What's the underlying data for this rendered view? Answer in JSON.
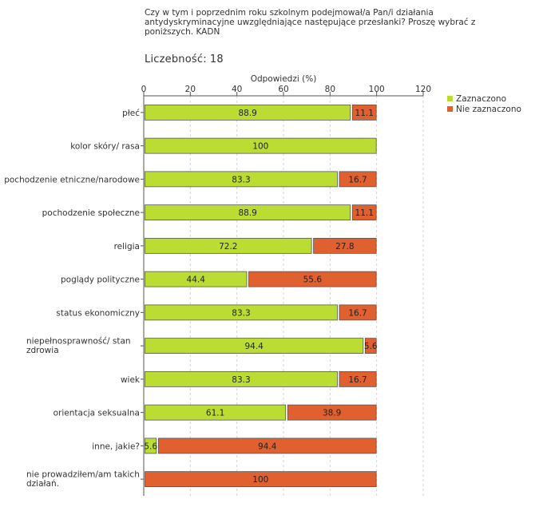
{
  "title": "Czy w tym i poprzednim roku szkolnym podejmował/a Pan/i działania antydyskryminacyjne uwzględniające następujące przesłanki? Proszę wybrać z poniższych. KADN",
  "count_label": "Liczebność:",
  "count_value": "18",
  "colors": {
    "selected": "#bbdd33",
    "not_selected": "#e06030",
    "bar_stroke": "#555555"
  },
  "chart_data": {
    "type": "bar",
    "orientation": "horizontal",
    "stacked": true,
    "xlabel": "Odpowiedzi (%)",
    "xlim": [
      0,
      120
    ],
    "xticks": [
      0,
      20,
      40,
      60,
      80,
      100,
      120
    ],
    "grid": true,
    "legend_position": "top-right",
    "categories": [
      "płeć",
      "kolor skóry/ rasa",
      "pochodzenie etniczne/narodowe",
      "pochodzenie społeczne",
      "religia",
      "poglądy polityczne",
      "status ekonomiczny",
      "niepełnosprawność/ stan zdrowia",
      "wiek",
      "orientacja seksualna",
      "inne, jakie?",
      "nie prowadziłem/am takich działań."
    ],
    "series": [
      {
        "name": "Zaznaczono",
        "values": [
          88.9,
          100,
          83.3,
          88.9,
          72.2,
          44.4,
          83.3,
          94.4,
          83.3,
          61.1,
          5.6,
          null
        ],
        "labels": [
          "88.9",
          "100",
          "83.3",
          "88.9",
          "72.2",
          "44.4",
          "83.3",
          "94.4",
          "83.3",
          "61.1",
          "5.6",
          ""
        ]
      },
      {
        "name": "Nie zaznaczono",
        "values": [
          11.1,
          null,
          16.7,
          11.1,
          27.8,
          55.6,
          16.7,
          5.6,
          16.7,
          38.9,
          94.4,
          100
        ],
        "labels": [
          "11.1",
          "",
          "16.7",
          "11.1",
          "27.8",
          "55.6",
          "16.7",
          "5.6",
          "16.7",
          "38.9",
          "94.4",
          "100"
        ]
      }
    ]
  }
}
